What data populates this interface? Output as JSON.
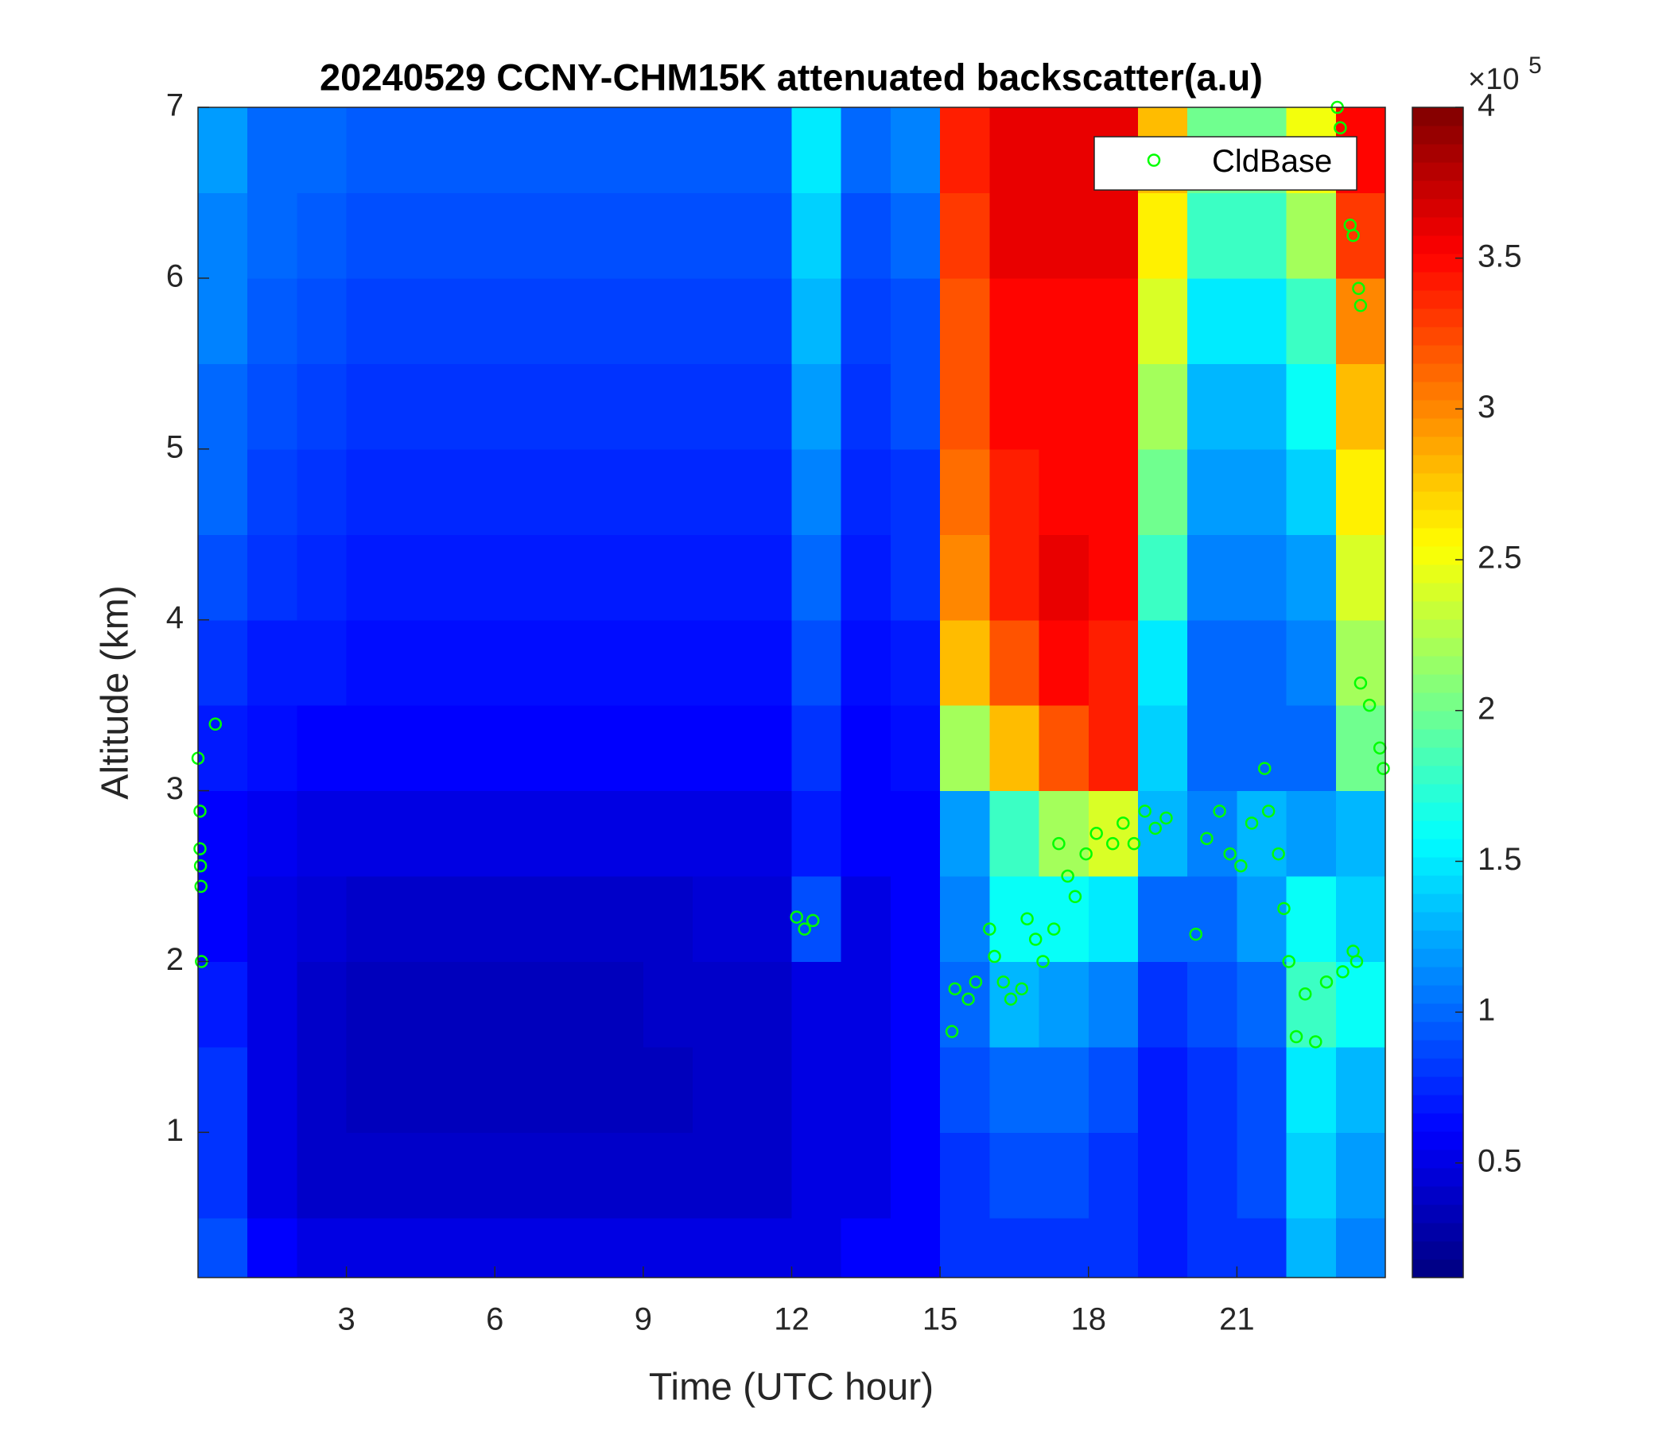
{
  "chart_data": {
    "type": "heatmap",
    "title": "20240529 CCNY-CHM15K attenuated backscatter(a.u)",
    "xlabel": "Time (UTC hour)",
    "ylabel": "Altitude (km)",
    "xlim": [
      0,
      24
    ],
    "ylim": [
      0.15,
      7
    ],
    "xticks": [
      3,
      6,
      9,
      12,
      15,
      18,
      21
    ],
    "yticks": [
      1,
      2,
      3,
      4,
      5,
      6,
      7
    ],
    "x_edges": [
      0,
      1,
      2,
      3,
      4,
      5,
      6,
      7,
      8,
      9,
      10,
      11,
      12,
      13,
      14,
      15,
      16,
      17,
      18,
      19,
      20,
      21,
      22,
      23,
      24
    ],
    "y_edges": [
      0.15,
      0.5,
      1,
      1.5,
      2,
      2.5,
      3,
      3.5,
      4,
      4.5,
      5,
      5.5,
      6,
      6.5,
      7
    ],
    "z": [
      [
        0.9,
        0.6,
        0.5,
        0.5,
        0.5,
        0.5,
        0.5,
        0.5,
        0.5,
        0.5,
        0.5,
        0.5,
        0.5,
        0.6,
        0.6,
        0.8,
        0.8,
        0.8,
        0.8,
        0.7,
        0.8,
        0.8,
        1.3,
        1.1
      ],
      [
        0.8,
        0.5,
        0.4,
        0.4,
        0.4,
        0.4,
        0.4,
        0.4,
        0.4,
        0.4,
        0.4,
        0.4,
        0.5,
        0.5,
        0.6,
        0.8,
        0.9,
        0.9,
        0.8,
        0.7,
        0.8,
        0.9,
        1.4,
        1.2
      ],
      [
        0.8,
        0.5,
        0.4,
        0.35,
        0.35,
        0.35,
        0.35,
        0.35,
        0.35,
        0.35,
        0.4,
        0.4,
        0.5,
        0.5,
        0.6,
        0.9,
        1.0,
        1.0,
        0.9,
        0.7,
        0.8,
        0.9,
        1.5,
        1.3
      ],
      [
        0.7,
        0.5,
        0.4,
        0.35,
        0.35,
        0.35,
        0.35,
        0.35,
        0.35,
        0.4,
        0.4,
        0.4,
        0.5,
        0.5,
        0.6,
        1.0,
        1.3,
        1.2,
        1.1,
        0.8,
        0.9,
        1.0,
        1.8,
        1.6
      ],
      [
        0.6,
        0.5,
        0.45,
        0.4,
        0.4,
        0.4,
        0.4,
        0.4,
        0.4,
        0.4,
        0.45,
        0.45,
        0.9,
        0.5,
        0.6,
        1.1,
        1.6,
        1.6,
        1.5,
        1.0,
        1.0,
        1.2,
        1.6,
        1.4
      ],
      [
        0.6,
        0.55,
        0.5,
        0.5,
        0.5,
        0.5,
        0.5,
        0.5,
        0.5,
        0.5,
        0.5,
        0.5,
        0.7,
        0.6,
        0.6,
        1.2,
        1.8,
        2.2,
        2.4,
        1.3,
        1.1,
        1.3,
        1.2,
        1.3
      ],
      [
        0.7,
        0.65,
        0.6,
        0.6,
        0.6,
        0.6,
        0.6,
        0.6,
        0.6,
        0.6,
        0.6,
        0.6,
        0.8,
        0.6,
        0.65,
        2.2,
        2.8,
        3.2,
        3.4,
        1.4,
        1.0,
        1.0,
        1.0,
        2.0
      ],
      [
        0.8,
        0.7,
        0.7,
        0.65,
        0.65,
        0.65,
        0.65,
        0.65,
        0.65,
        0.65,
        0.65,
        0.65,
        0.9,
        0.65,
        0.7,
        2.8,
        3.2,
        3.5,
        3.4,
        1.5,
        1.0,
        1.0,
        1.1,
        2.2
      ],
      [
        0.9,
        0.8,
        0.75,
        0.7,
        0.7,
        0.7,
        0.7,
        0.7,
        0.7,
        0.7,
        0.7,
        0.7,
        1.0,
        0.7,
        0.8,
        3.0,
        3.4,
        3.6,
        3.5,
        1.8,
        1.1,
        1.1,
        1.2,
        2.4
      ],
      [
        1.0,
        0.85,
        0.8,
        0.75,
        0.75,
        0.75,
        0.75,
        0.75,
        0.75,
        0.75,
        0.75,
        0.75,
        1.1,
        0.75,
        0.8,
        3.1,
        3.4,
        3.5,
        3.5,
        2.0,
        1.2,
        1.2,
        1.4,
        2.6
      ],
      [
        1.0,
        0.9,
        0.85,
        0.8,
        0.8,
        0.8,
        0.8,
        0.8,
        0.8,
        0.8,
        0.8,
        0.8,
        1.2,
        0.8,
        0.9,
        3.2,
        3.5,
        3.5,
        3.5,
        2.2,
        1.3,
        1.3,
        1.6,
        2.8
      ],
      [
        1.1,
        0.95,
        0.9,
        0.85,
        0.85,
        0.85,
        0.85,
        0.85,
        0.85,
        0.85,
        0.85,
        0.85,
        1.3,
        0.85,
        0.9,
        3.2,
        3.5,
        3.5,
        3.5,
        2.4,
        1.5,
        1.5,
        1.8,
        3.0
      ],
      [
        1.1,
        1.0,
        0.95,
        0.9,
        0.9,
        0.9,
        0.9,
        0.9,
        0.9,
        0.9,
        0.9,
        0.9,
        1.4,
        0.9,
        1.0,
        3.3,
        3.6,
        3.6,
        3.6,
        2.6,
        1.8,
        1.8,
        2.2,
        3.3
      ],
      [
        1.2,
        1.0,
        1.0,
        0.95,
        0.95,
        0.95,
        0.95,
        0.95,
        0.95,
        0.95,
        0.95,
        0.95,
        1.5,
        1.0,
        1.1,
        3.4,
        3.6,
        3.6,
        3.6,
        2.8,
        2.0,
        2.0,
        2.5,
        3.5
      ]
    ],
    "colormap": "jet",
    "clim": [
      0.12,
      4
    ],
    "colorbar_ticks": [
      0.5,
      1,
      1.5,
      2,
      2.5,
      3,
      3.5,
      4
    ],
    "colorbar_base": "×10",
    "colorbar_exponent": 5,
    "legend": "upper right",
    "series": [
      {
        "name": "CldBase",
        "type": "scatter",
        "color": "#00ff00",
        "x": [
          0.0,
          0.04,
          0.04,
          0.05,
          0.06,
          0.07,
          0.35,
          12.1,
          12.26,
          12.43,
          15.24,
          15.3,
          15.57,
          15.72,
          16.0,
          16.1,
          16.28,
          16.43,
          16.65,
          16.76,
          16.93,
          17.08,
          17.3,
          17.4,
          17.58,
          17.73,
          17.95,
          18.16,
          18.49,
          18.7,
          18.92,
          19.14,
          19.35,
          19.57,
          20.17,
          20.39,
          20.65,
          20.86,
          21.08,
          21.3,
          21.56,
          21.64,
          21.84,
          21.95,
          22.05,
          22.2,
          22.38,
          22.59,
          22.81,
          23.14,
          23.35,
          23.42,
          23.03,
          23.09,
          23.29,
          23.35,
          23.5,
          23.46,
          23.5,
          23.68,
          23.89,
          23.96
        ],
        "y": [
          3.19,
          2.88,
          2.66,
          2.56,
          2.44,
          2.0,
          3.39,
          2.26,
          2.19,
          2.24,
          1.59,
          1.84,
          1.78,
          1.88,
          2.19,
          2.03,
          1.88,
          1.78,
          1.84,
          2.25,
          2.13,
          2.0,
          2.19,
          2.69,
          2.5,
          2.38,
          2.63,
          2.75,
          2.69,
          2.81,
          2.69,
          2.88,
          2.78,
          2.84,
          2.16,
          2.72,
          2.88,
          2.63,
          2.56,
          2.81,
          3.13,
          2.88,
          2.63,
          2.31,
          2.0,
          1.56,
          1.81,
          1.53,
          1.88,
          1.94,
          2.06,
          2.0,
          7.0,
          6.88,
          6.31,
          6.25,
          5.84,
          5.94,
          3.63,
          3.5,
          3.25,
          3.13
        ]
      }
    ]
  }
}
